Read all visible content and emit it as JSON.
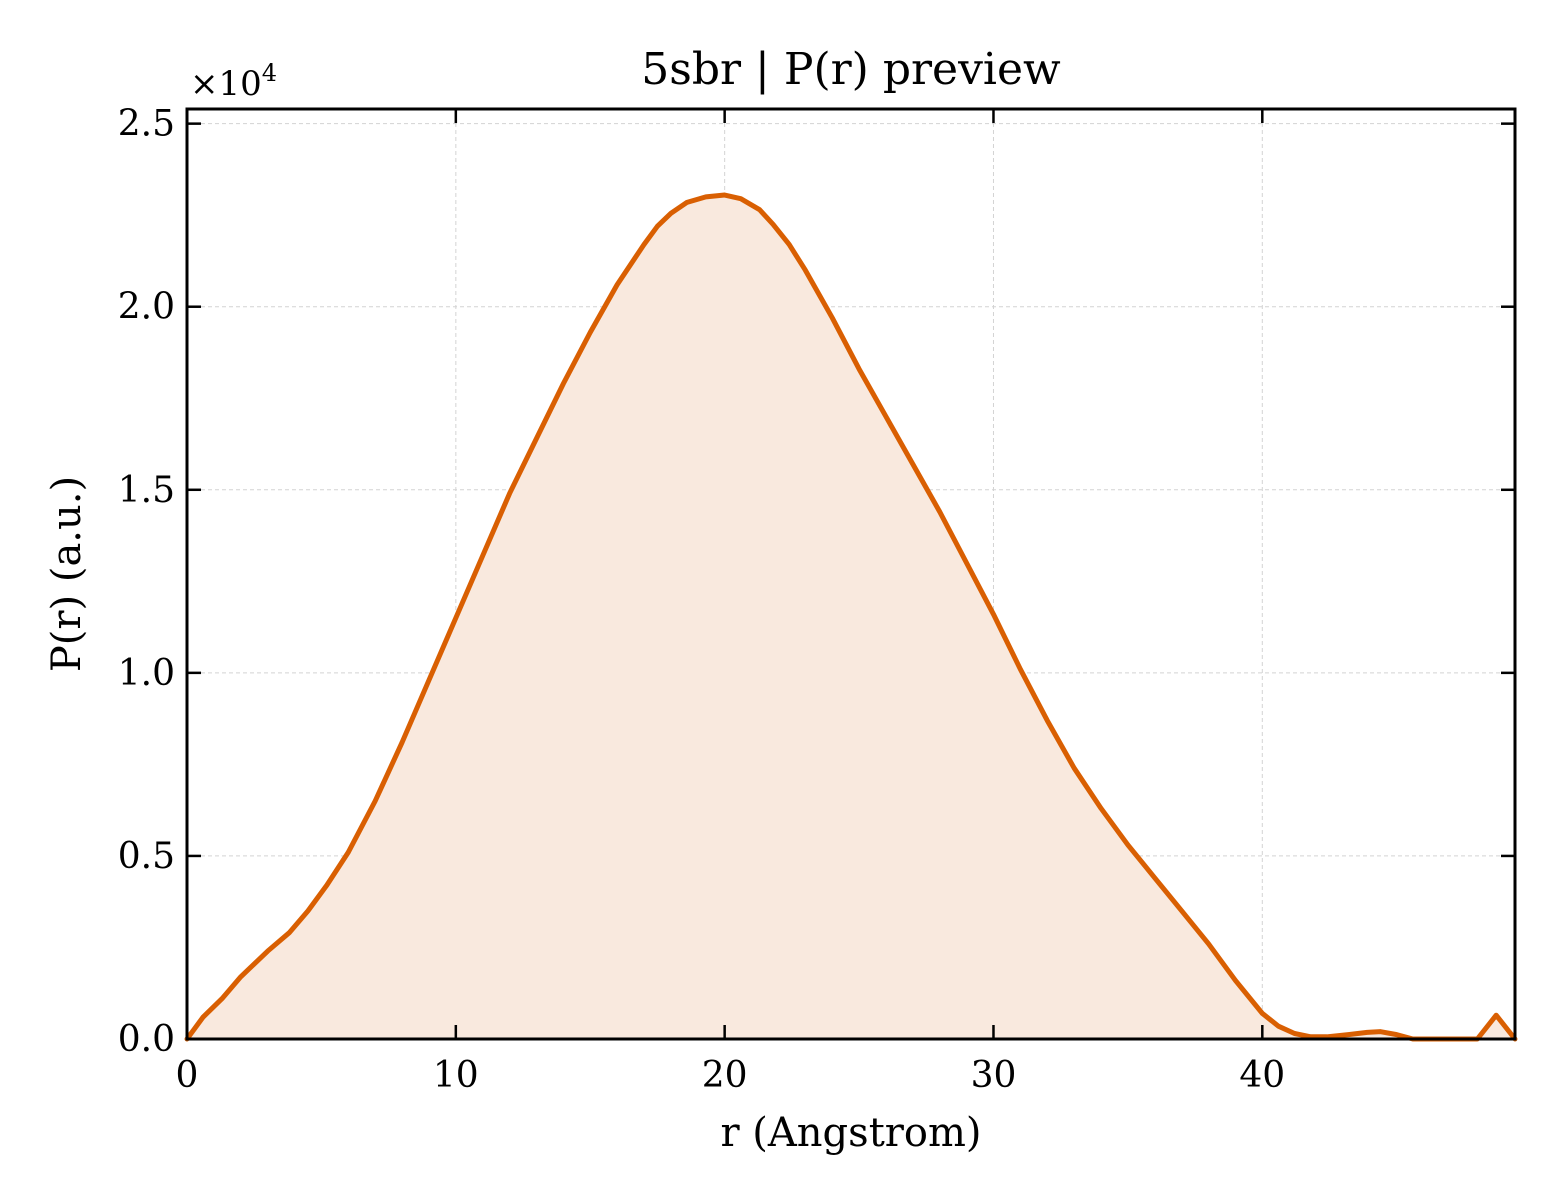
{
  "chart_data": {
    "type": "area",
    "title": "5sbr | P(r) preview",
    "xlabel": "r (Angstrom)",
    "ylabel": "P(r) (a.u.)",
    "y_scale_label": "×10",
    "y_scale_exponent": "4",
    "xlim": [
      0,
      49.4
    ],
    "ylim": [
      0,
      2.54
    ],
    "y_multiplier": 10000,
    "xticks": [
      0,
      10,
      20,
      30,
      40
    ],
    "xtick_labels": [
      "0",
      "10",
      "20",
      "30",
      "40"
    ],
    "yticks": [
      0,
      0.5,
      1.0,
      1.5,
      2.0,
      2.5
    ],
    "ytick_labels": [
      "0.0",
      "0.5",
      "1.0",
      "1.5",
      "2.0",
      "2.5"
    ],
    "grid": true,
    "legend": "none",
    "colors": {
      "line": "#d95f02",
      "fill": "#f9e9de",
      "grid": "#d3d3d3",
      "axes": "#000000"
    },
    "series": [
      {
        "x": [
          0,
          0.6,
          1.3,
          2.0,
          3.0,
          3.8,
          4.5,
          5.2,
          6.0,
          7.0,
          8.0,
          9.0,
          10.0,
          11.0,
          12.0,
          13.0,
          14.0,
          15.0,
          16.0,
          17.0,
          17.5,
          18.0,
          18.6,
          19.3,
          20.0,
          20.6,
          21.3,
          21.8,
          22.4,
          23.0,
          24.0,
          25.0,
          26.0,
          27.0,
          28.0,
          29.0,
          30.0,
          31.0,
          32.0,
          33.0,
          34.0,
          35.0,
          36.0,
          37.0,
          38.0,
          39.0,
          40.0,
          40.6,
          41.2,
          41.8,
          42.4,
          43.2,
          43.9,
          44.4,
          45.0,
          45.6,
          46.1,
          47.0,
          48.0,
          48.7,
          49.4
        ],
        "y": [
          0.0,
          0.06,
          0.11,
          0.17,
          0.24,
          0.29,
          0.35,
          0.42,
          0.51,
          0.65,
          0.81,
          0.98,
          1.15,
          1.32,
          1.49,
          1.64,
          1.79,
          1.93,
          2.06,
          2.17,
          2.22,
          2.255,
          2.285,
          2.3,
          2.305,
          2.295,
          2.265,
          2.225,
          2.17,
          2.1,
          1.97,
          1.83,
          1.7,
          1.57,
          1.44,
          1.3,
          1.16,
          1.01,
          0.87,
          0.74,
          0.63,
          0.53,
          0.44,
          0.35,
          0.26,
          0.16,
          0.07,
          0.035,
          0.015,
          0.006,
          0.006,
          0.012,
          0.018,
          0.02,
          0.012,
          0.0,
          0.0,
          0.0,
          0.0,
          0.065,
          0.0
        ]
      }
    ]
  }
}
